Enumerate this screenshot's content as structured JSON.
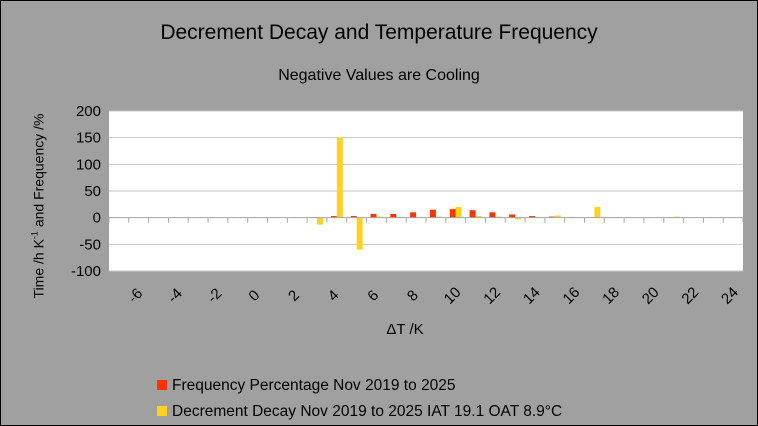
{
  "chart_data": {
    "type": "bar",
    "title": "Decrement Decay and Temperature Frequency",
    "subtitle": "Negative Values are Cooling",
    "xlabel": "ΔT /K",
    "ylabel_parts": [
      "Time /h K",
      "-1",
      " and Frequency /%"
    ],
    "ylim": [
      -100,
      200
    ],
    "yticks": [
      200,
      150,
      100,
      50,
      0,
      -50,
      -100
    ],
    "xlim": [
      -7,
      25
    ],
    "xticks": [
      -6,
      -4,
      -2,
      0,
      2,
      4,
      6,
      8,
      10,
      12,
      14,
      16,
      18,
      20,
      22,
      24
    ],
    "x": [
      -7,
      -6,
      -5,
      -4,
      -3,
      -2,
      -1,
      0,
      1,
      2,
      3,
      4,
      5,
      6,
      7,
      8,
      9,
      10,
      11,
      12,
      13,
      14,
      15,
      16,
      17,
      18,
      19,
      20,
      21,
      22,
      23,
      24
    ],
    "grid": true,
    "legend_position": "bottom-left",
    "series": [
      {
        "name": "Frequency Percentage Nov 2019 to 2025",
        "color": "#ff3300",
        "values": [
          0.5,
          0.5,
          0.5,
          0.5,
          0.5,
          0.5,
          0.5,
          0.5,
          0.5,
          0.5,
          1,
          3,
          3,
          7,
          7,
          10,
          15,
          16,
          14,
          10,
          6,
          3,
          2,
          1,
          0.5,
          0.5,
          0.5,
          0.5,
          0.5,
          0.5,
          0.5,
          0.5
        ]
      },
      {
        "name": "Decrement Decay Nov 2019 to 2025 IAT 19.1 OAT 8.9°C",
        "color": "#ffd21f",
        "values": [
          0,
          0,
          0,
          0,
          0,
          0,
          0,
          0,
          0,
          0,
          -13,
          150,
          -60,
          2,
          1,
          1,
          2,
          20,
          3,
          2,
          -3,
          1,
          4,
          1,
          20,
          0,
          0,
          0,
          2,
          0,
          0,
          0
        ]
      }
    ]
  }
}
